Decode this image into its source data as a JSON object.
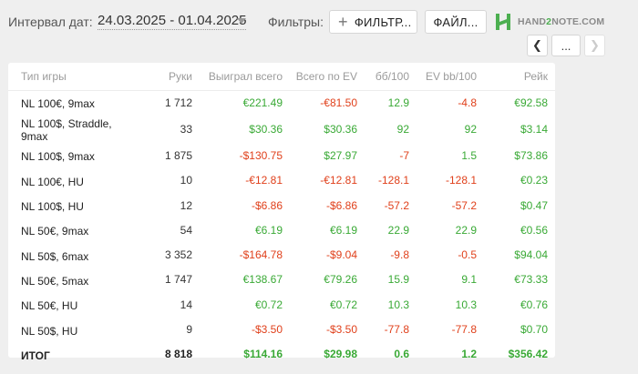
{
  "header": {
    "date_label": "Интервал дат:",
    "date_range": "24.03.2025 - 01.04.2025",
    "filters_label": "Фильтры:",
    "filter_button": "ФИЛЬТР...",
    "file_button": "ФАЙЛ...",
    "logo_part1": "HAND",
    "logo_part2": "2",
    "logo_part3": "NOTE.COM",
    "nav_prev": "❮",
    "nav_more": "...",
    "nav_next": "❯"
  },
  "table": {
    "columns": [
      "Тип игры",
      "Руки",
      "Выиграл всего",
      "Всего по EV",
      "бб/100",
      "EV bb/100",
      "Рейк"
    ],
    "rows": [
      [
        "NL 100€, 9max",
        "1 712",
        "€221.49",
        "-€81.50",
        "12.9",
        "-4.8",
        "€92.58"
      ],
      [
        "NL 100$, Straddle, 9max",
        "33",
        "$30.36",
        "$30.36",
        "92",
        "92",
        "$3.14"
      ],
      [
        "NL 100$, 9max",
        "1 875",
        "-$130.75",
        "$27.97",
        "-7",
        "1.5",
        "$73.86"
      ],
      [
        "NL 100€, HU",
        "10",
        "-€12.81",
        "-€12.81",
        "-128.1",
        "-128.1",
        "€0.23"
      ],
      [
        "NL 100$, HU",
        "12",
        "-$6.86",
        "-$6.86",
        "-57.2",
        "-57.2",
        "$0.47"
      ],
      [
        "NL 50€, 9max",
        "54",
        "€6.19",
        "€6.19",
        "22.9",
        "22.9",
        "€0.56"
      ],
      [
        "NL 50$, 6max",
        "3 352",
        "-$164.78",
        "-$9.04",
        "-9.8",
        "-0.5",
        "$94.04"
      ],
      [
        "NL 50€, 5max",
        "1 747",
        "€138.67",
        "€79.26",
        "15.9",
        "9.1",
        "€73.33"
      ],
      [
        "NL 50€, HU",
        "14",
        "€0.72",
        "€0.72",
        "10.3",
        "10.3",
        "€0.76"
      ],
      [
        "NL 50$, HU",
        "9",
        "-$3.50",
        "-$3.50",
        "-77.8",
        "-77.8",
        "$0.70"
      ]
    ],
    "total": [
      "ИТОГ",
      "8 818",
      "$114.16",
      "$29.98",
      "0.6",
      "1.2",
      "$356.42"
    ]
  },
  "colors": {
    "positive": "#39a935",
    "negative": "#e0401b",
    "brand": "#4caf50"
  }
}
